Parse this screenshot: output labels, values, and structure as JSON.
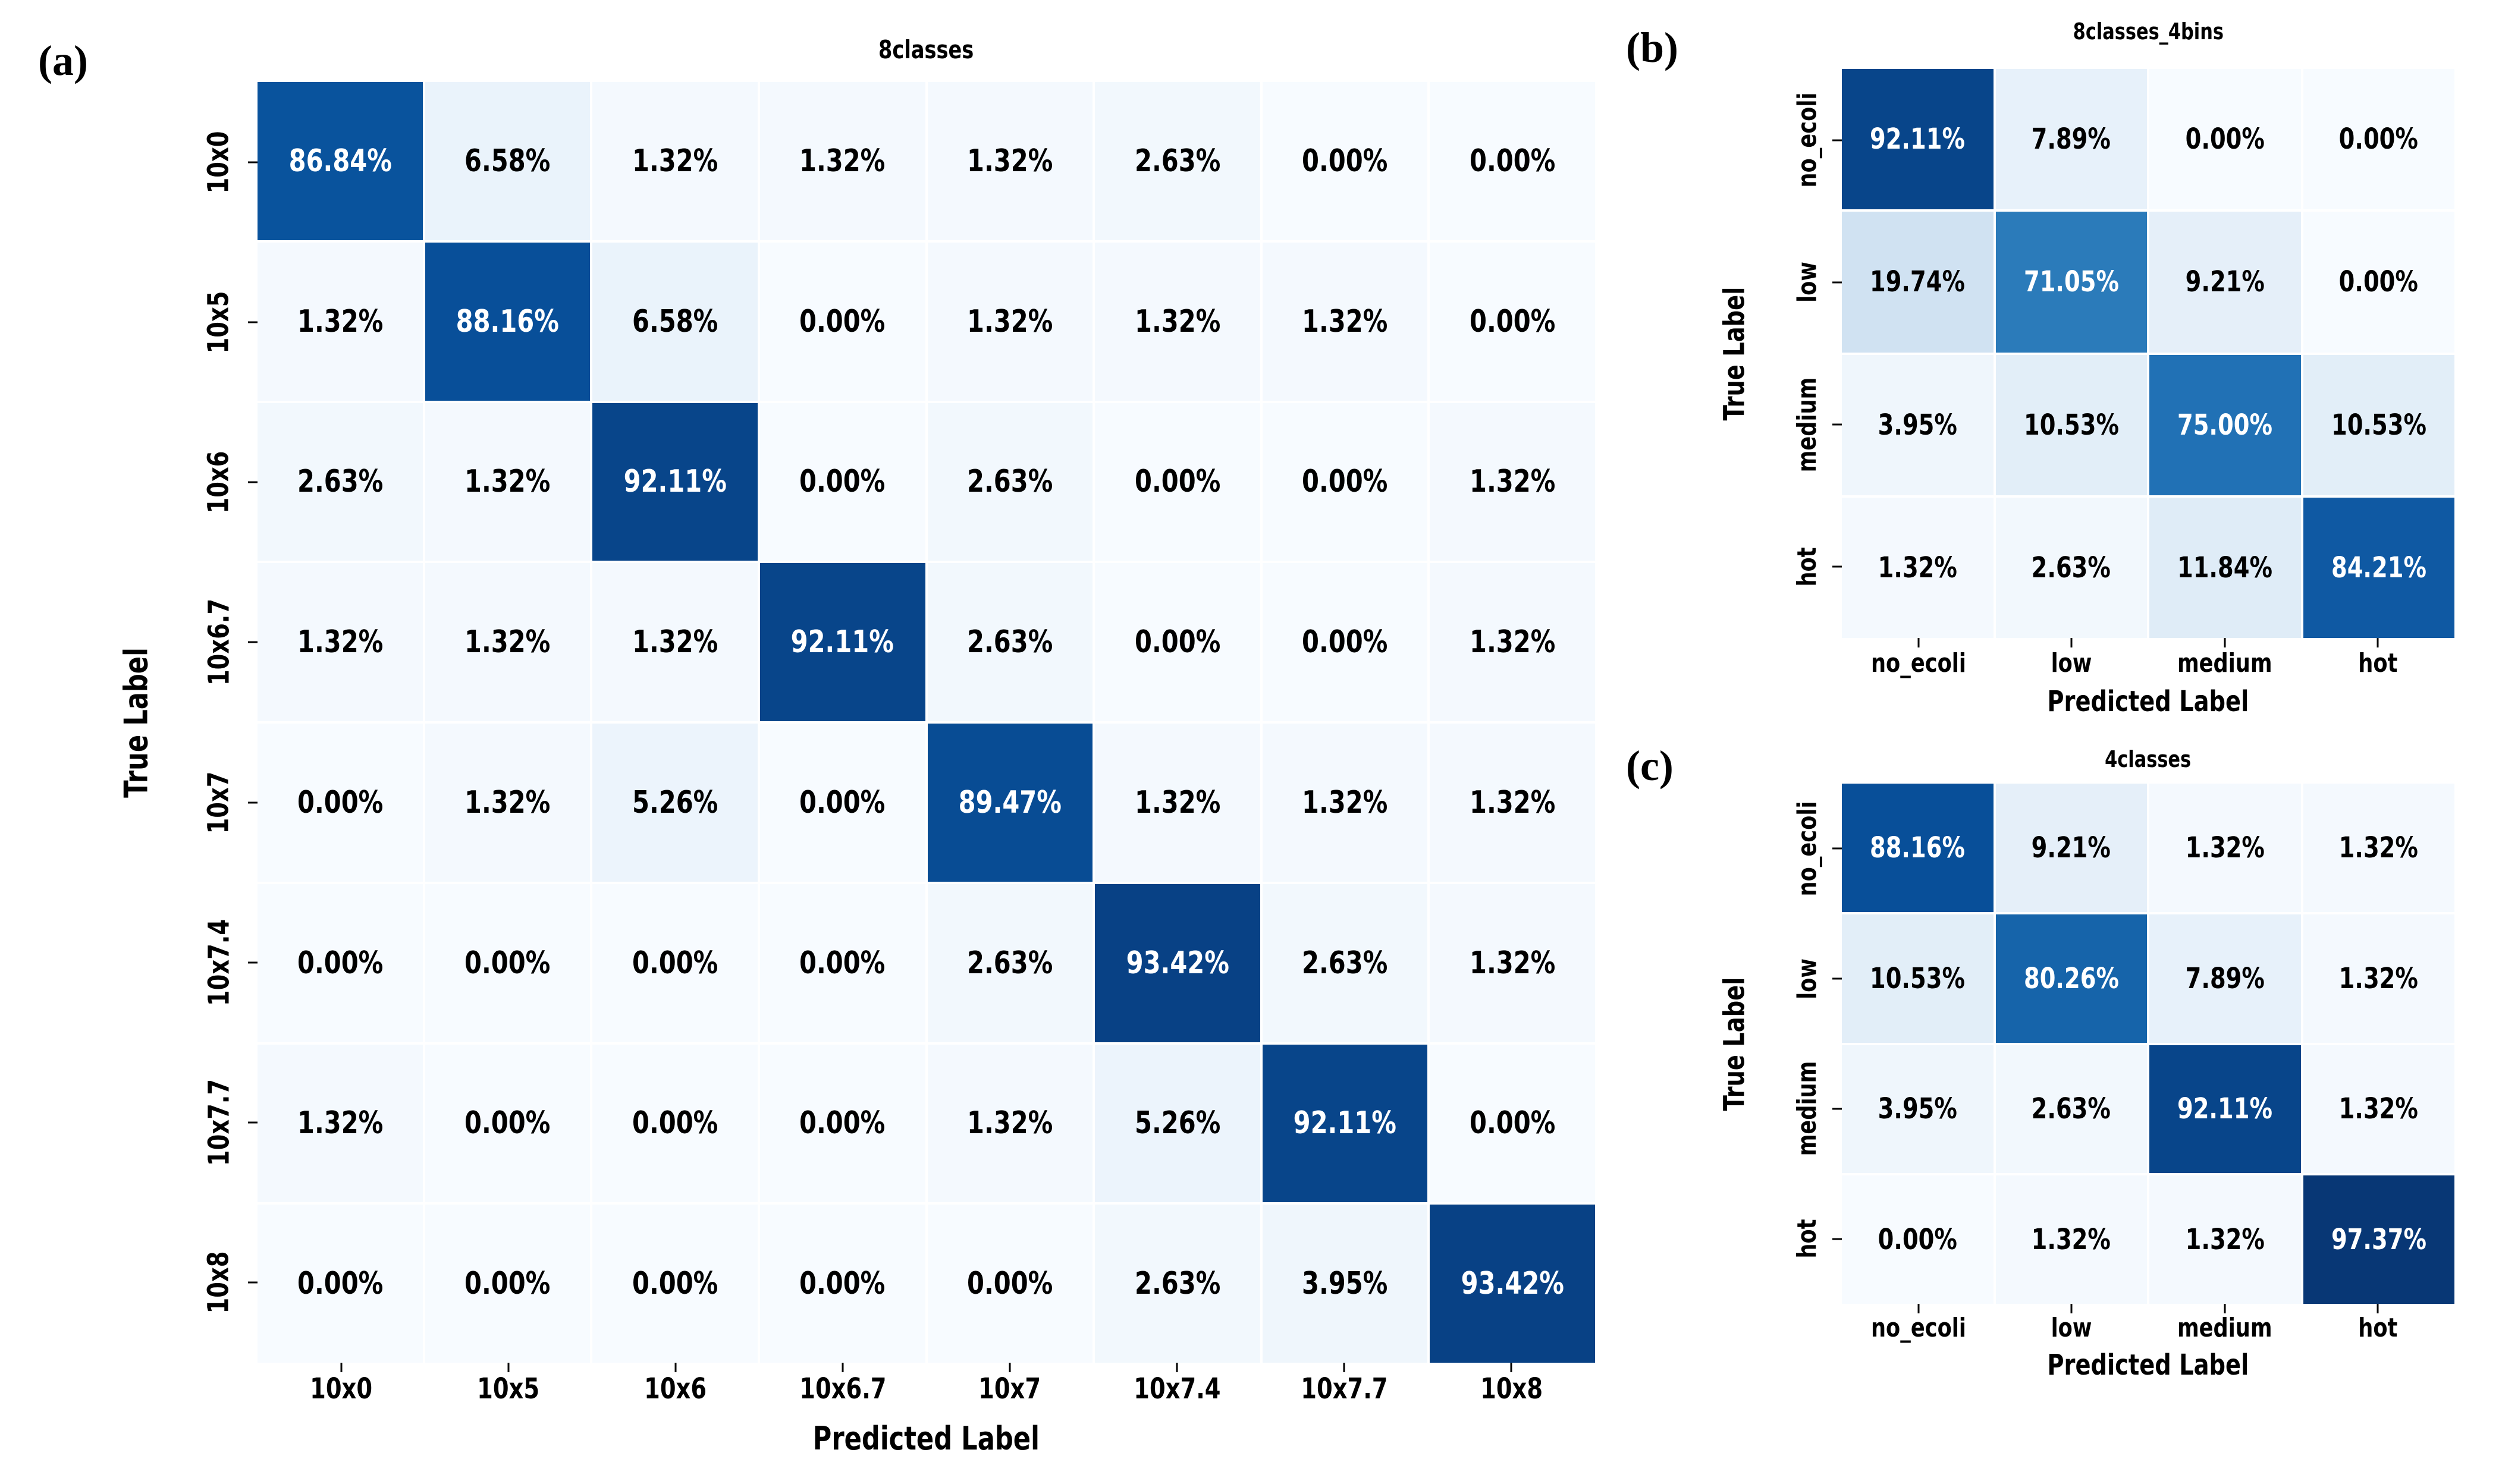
{
  "figure_labels": {
    "a": "(a)",
    "b": "(b)",
    "c": "(c)"
  },
  "colors": {
    "background": "#ffffff",
    "text": "#000000",
    "tick": "#000000",
    "grid_gap": "#ffffff",
    "cell_text_light": "#ffffff",
    "cell_text_dark": "#000000",
    "colormap_blues": [
      "#f7fbff",
      "#deebf7",
      "#c6dbef",
      "#9ecae1",
      "#6baed6",
      "#4292c6",
      "#2171b5",
      "#08519c",
      "#08306b"
    ]
  },
  "value_format": {
    "decimals": 2,
    "suffix": "%"
  },
  "chart_data": [
    {
      "type": "heatmap",
      "panel": "a",
      "title": "8classes",
      "xlabel": "Predicted Label",
      "ylabel": "True Label",
      "legend_position": "none",
      "grid": "white-gaps",
      "value_range": [
        0,
        100
      ],
      "x_categories": [
        "10x0",
        "10x5",
        "10x6",
        "10x6.7",
        "10x7",
        "10x7.4",
        "10x7.7",
        "10x8"
      ],
      "y_categories": [
        "10x0",
        "10x5",
        "10x6",
        "10x6.7",
        "10x7",
        "10x7.4",
        "10x7.7",
        "10x8"
      ],
      "values": [
        [
          86.84,
          6.58,
          1.32,
          1.32,
          1.32,
          2.63,
          0.0,
          0.0
        ],
        [
          1.32,
          88.16,
          6.58,
          0.0,
          1.32,
          1.32,
          1.32,
          0.0
        ],
        [
          2.63,
          1.32,
          92.11,
          0.0,
          2.63,
          0.0,
          0.0,
          1.32
        ],
        [
          1.32,
          1.32,
          1.32,
          92.11,
          2.63,
          0.0,
          0.0,
          1.32
        ],
        [
          0.0,
          1.32,
          5.26,
          0.0,
          89.47,
          1.32,
          1.32,
          1.32
        ],
        [
          0.0,
          0.0,
          0.0,
          0.0,
          2.63,
          93.42,
          2.63,
          1.32
        ],
        [
          1.32,
          0.0,
          0.0,
          0.0,
          1.32,
          5.26,
          92.11,
          0.0
        ],
        [
          0.0,
          0.0,
          0.0,
          0.0,
          0.0,
          2.63,
          3.95,
          93.42
        ]
      ]
    },
    {
      "type": "heatmap",
      "panel": "b",
      "title": "8classes_4bins",
      "xlabel": "Predicted Label",
      "ylabel": "True Label",
      "legend_position": "none",
      "grid": "white-gaps",
      "value_range": [
        0,
        100
      ],
      "x_categories": [
        "no_ecoli",
        "low",
        "medium",
        "hot"
      ],
      "y_categories": [
        "no_ecoli",
        "low",
        "medium",
        "hot"
      ],
      "values": [
        [
          92.11,
          7.89,
          0.0,
          0.0
        ],
        [
          19.74,
          71.05,
          9.21,
          0.0
        ],
        [
          3.95,
          10.53,
          75.0,
          10.53
        ],
        [
          1.32,
          2.63,
          11.84,
          84.21
        ]
      ]
    },
    {
      "type": "heatmap",
      "panel": "c",
      "title": "4classes",
      "xlabel": "Predicted Label",
      "ylabel": "True Label",
      "legend_position": "none",
      "grid": "white-gaps",
      "value_range": [
        0,
        100
      ],
      "x_categories": [
        "no_ecoli",
        "low",
        "medium",
        "hot"
      ],
      "y_categories": [
        "no_ecoli",
        "low",
        "medium",
        "hot"
      ],
      "values": [
        [
          88.16,
          9.21,
          1.32,
          1.32
        ],
        [
          10.53,
          80.26,
          7.89,
          1.32
        ],
        [
          3.95,
          2.63,
          92.11,
          1.32
        ],
        [
          0.0,
          1.32,
          1.32,
          97.37
        ]
      ]
    }
  ]
}
